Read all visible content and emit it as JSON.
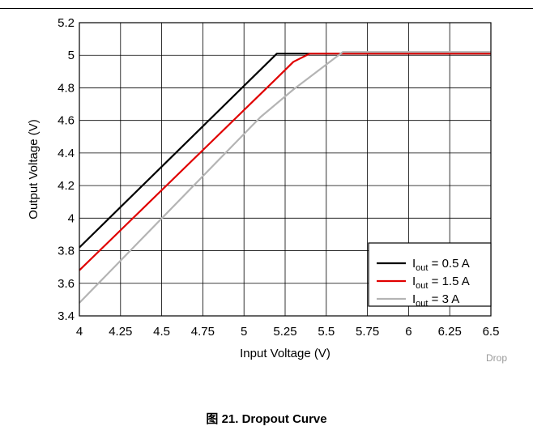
{
  "chart_data": {
    "type": "line",
    "xlabel": "Input Voltage (V)",
    "ylabel": "Output Voltage (V)",
    "xlim": [
      4,
      6.5
    ],
    "ylim": [
      3.4,
      5.2
    ],
    "x_ticks": [
      "4",
      "4.25",
      "4.5",
      "4.75",
      "5",
      "5.25",
      "5.5",
      "5.75",
      "6",
      "6.25",
      "6.5"
    ],
    "y_ticks": [
      "3.4",
      "3.6",
      "3.8",
      "4",
      "4.2",
      "4.4",
      "4.6",
      "4.8",
      "5",
      "5.2"
    ],
    "grid": true,
    "legend_position": "bottom-right",
    "series": [
      {
        "name_main": "I",
        "name_sub": "out",
        "name_rest": " = 0.5 A",
        "color": "#000000",
        "points": [
          [
            4.0,
            3.82
          ],
          [
            5.2,
            5.01
          ],
          [
            5.3,
            5.01
          ],
          [
            6.5,
            5.01
          ]
        ]
      },
      {
        "name_main": "I",
        "name_sub": "out",
        "name_rest": " = 1.5 A",
        "color": "#e00000",
        "points": [
          [
            4.0,
            3.68
          ],
          [
            5.2,
            4.86
          ],
          [
            5.3,
            4.96
          ],
          [
            5.4,
            5.01
          ],
          [
            6.5,
            5.01
          ]
        ]
      },
      {
        "name_main": "I",
        "name_sub": "out",
        "name_rest": " = 3 A",
        "color": "#b4b4b4",
        "points": [
          [
            4.0,
            3.48
          ],
          [
            5.1,
            4.62
          ],
          [
            5.3,
            4.79
          ],
          [
            5.6,
            5.02
          ],
          [
            6.5,
            5.02
          ]
        ]
      }
    ]
  },
  "caption": "图 21. Dropout Curve",
  "watermark": "Drop"
}
